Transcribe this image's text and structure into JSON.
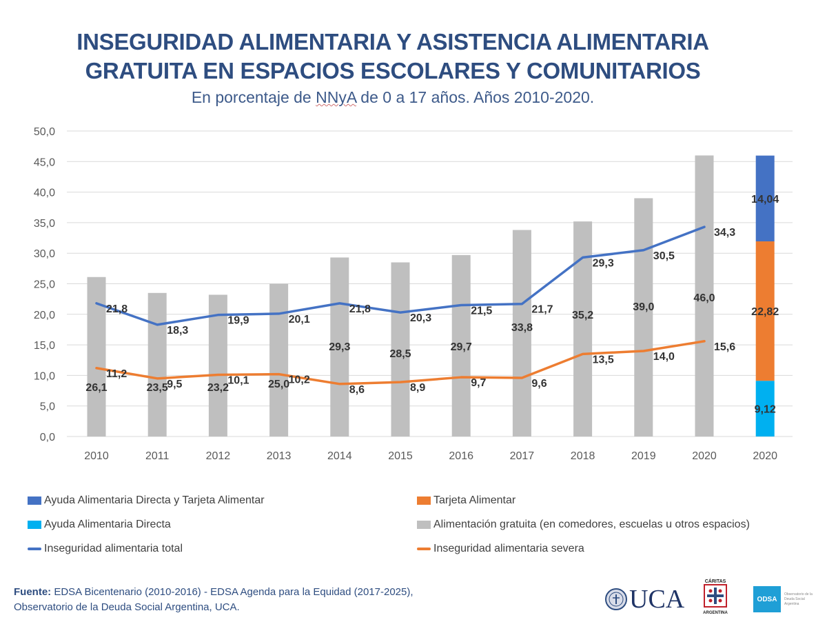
{
  "header": {
    "title_line1": "INSEGURIDAD ALIMENTARIA Y ASISTENCIA ALIMENTARIA",
    "title_line2": "GRATUITA EN ESPACIOS ESCOLARES Y COMUNITARIOS",
    "subtitle_pre": "En porcentaje de ",
    "subtitle_nnya": "NNyA",
    "subtitle_post": " de 0 a 17 años. Años 2010-2020."
  },
  "chart_data": {
    "type": "bar",
    "title": "INSEGURIDAD ALIMENTARIA Y ASISTENCIA ALIMENTARIA GRATUITA EN ESPACIOS ESCOLARES Y COMUNITARIOS",
    "subtitle": "En porcentaje de NNyA de 0 a 17 años. Años 2010-2020.",
    "xlabel": "",
    "ylabel": "",
    "ylim": [
      0,
      50
    ],
    "yticks": [
      "0,0",
      "5,0",
      "10,0",
      "15,0",
      "20,0",
      "25,0",
      "30,0",
      "35,0",
      "40,0",
      "45,0",
      "50,0"
    ],
    "grid": true,
    "categories": [
      "2010",
      "2011",
      "2012",
      "2013",
      "2014",
      "2015",
      "2016",
      "2017",
      "2018",
      "2019",
      "2020",
      "2020"
    ],
    "series": [
      {
        "name": "Alimentación gratuita (en comedores, escuelas u otros espacios)",
        "kind": "bar",
        "color": "#bfbfbf",
        "values": [
          26.1,
          23.5,
          23.2,
          25.0,
          29.3,
          28.5,
          29.7,
          33.8,
          35.2,
          39.0,
          46.0,
          null
        ],
        "labels": [
          "26,1",
          "23,5",
          "23,2",
          "25,0",
          "29,3",
          "28,5",
          "29,7",
          "33,8",
          "35,2",
          "39,0",
          "46,0",
          ""
        ]
      },
      {
        "name": "Inseguridad alimentaria total",
        "kind": "line",
        "color": "#4472c4",
        "values": [
          21.8,
          18.3,
          19.9,
          20.1,
          21.8,
          20.3,
          21.5,
          21.7,
          29.3,
          30.5,
          34.3,
          null
        ],
        "labels": [
          "21,8",
          "18,3",
          "19,9",
          "20,1",
          "21,8",
          "20,3",
          "21,5",
          "21,7",
          "29,3",
          "30,5",
          "34,3",
          ""
        ]
      },
      {
        "name": "Inseguridad alimentaria severa",
        "kind": "line",
        "color": "#ed7d31",
        "values": [
          11.2,
          9.5,
          10.1,
          10.2,
          8.6,
          8.9,
          9.7,
          9.6,
          13.5,
          14.0,
          15.6,
          null
        ],
        "labels": [
          "11,2",
          "9,5",
          "10,1",
          "10,2",
          "8,6",
          "8,9",
          "9,7",
          "9,6",
          "13,5",
          "14,0",
          "15,6",
          ""
        ]
      },
      {
        "name": "Ayuda Alimentaria Directa",
        "kind": "stacked",
        "color": "#00b0f0",
        "values": [
          null,
          null,
          null,
          null,
          null,
          null,
          null,
          null,
          null,
          null,
          null,
          9.12
        ],
        "labels": [
          "",
          "",
          "",
          "",
          "",
          "",
          "",
          "",
          "",
          "",
          "",
          "9,12"
        ]
      },
      {
        "name": "Tarjeta Alimentar",
        "kind": "stacked",
        "color": "#ed7d31",
        "values": [
          null,
          null,
          null,
          null,
          null,
          null,
          null,
          null,
          null,
          null,
          null,
          22.82
        ],
        "labels": [
          "",
          "",
          "",
          "",
          "",
          "",
          "",
          "",
          "",
          "",
          "",
          "22,82"
        ]
      },
      {
        "name": "Ayuda Alimentaria Directa y Tarjeta Alimentar",
        "kind": "stacked",
        "color": "#4472c4",
        "values": [
          null,
          null,
          null,
          null,
          null,
          null,
          null,
          null,
          null,
          null,
          null,
          14.04
        ],
        "labels": [
          "",
          "",
          "",
          "",
          "",
          "",
          "",
          "",
          "",
          "",
          "",
          "14,04"
        ]
      }
    ],
    "legend": {
      "placement": "bottom",
      "items": [
        {
          "label": "Ayuda Alimentaria Directa y Tarjeta Alimentar",
          "color": "#4472c4",
          "shape": "box"
        },
        {
          "label": "Tarjeta Alimentar",
          "color": "#ed7d31",
          "shape": "box"
        },
        {
          "label": "Ayuda Alimentaria Directa",
          "color": "#00b0f0",
          "shape": "box"
        },
        {
          "label": "Alimentación gratuita (en comedores, escuelas u otros espacios)",
          "color": "#bfbfbf",
          "shape": "box"
        },
        {
          "label": "Inseguridad alimentaria total",
          "color": "#4472c4",
          "shape": "line"
        },
        {
          "label": "Inseguridad alimentaria severa",
          "color": "#ed7d31",
          "shape": "line"
        }
      ]
    }
  },
  "footer": {
    "source_label": "Fuente:",
    "source_line1": " EDSA Bicentenario (2010-2016) - EDSA Agenda para la Equidad (2017-2025),",
    "source_line2": "Observatorio de la Deuda Social Argentina, UCA.",
    "logos": {
      "uca": "UCA",
      "caritas_top": "CÁRITAS",
      "caritas_bottom": "ARGENTINA",
      "odsa": "ODSA",
      "odsa_caption": "Observatorio de la Deuda Social Argentina"
    }
  }
}
